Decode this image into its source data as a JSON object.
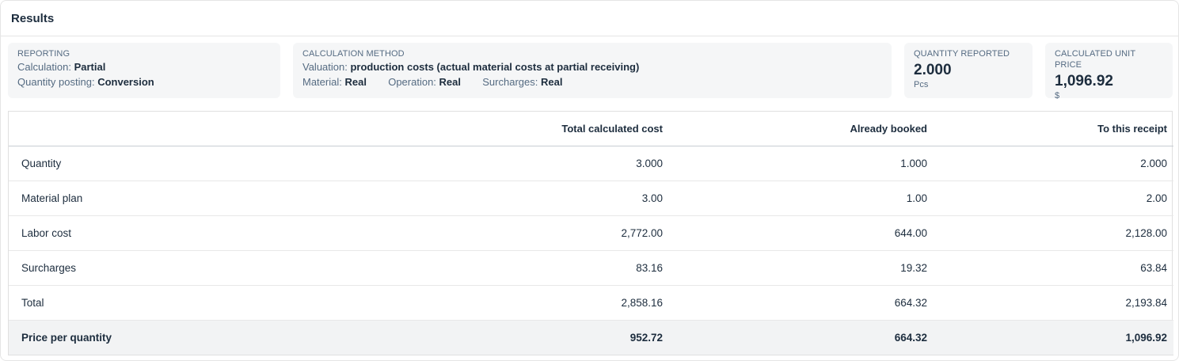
{
  "panel": {
    "title": "Results"
  },
  "reporting": {
    "label": "REPORTING",
    "calculation_label": "Calculation:",
    "calculation_value": "Partial",
    "posting_label": "Quantity posting:",
    "posting_value": "Conversion"
  },
  "method": {
    "label": "CALCULATION METHOD",
    "valuation_label": "Valuation:",
    "valuation_value": "production costs (actual material costs at partial receiving)",
    "material_label": "Material:",
    "material_value": "Real",
    "operation_label": "Operation:",
    "operation_value": "Real",
    "surcharges_label": "Surcharges:",
    "surcharges_value": "Real"
  },
  "quantity": {
    "label": "QUANTITY REPORTED",
    "value": "2.000",
    "unit": "Pcs"
  },
  "unit_price": {
    "label": "CALCULATED UNIT PRICE",
    "value": "1,096.92",
    "unit": "$"
  },
  "table": {
    "headers": [
      "",
      "Total calculated cost",
      "Already booked",
      "To this receipt"
    ],
    "rows": [
      [
        "Quantity",
        "3.000",
        "1.000",
        "2.000"
      ],
      [
        "Material plan",
        "3.00",
        "1.00",
        "2.00"
      ],
      [
        "Labor cost",
        "2,772.00",
        "644.00",
        "2,128.00"
      ],
      [
        "Surcharges",
        "83.16",
        "19.32",
        "63.84"
      ],
      [
        "Total",
        "2,858.16",
        "664.32",
        "2,193.84"
      ],
      [
        "Price per quantity",
        "952.72",
        "664.32",
        "1,096.92"
      ]
    ]
  }
}
